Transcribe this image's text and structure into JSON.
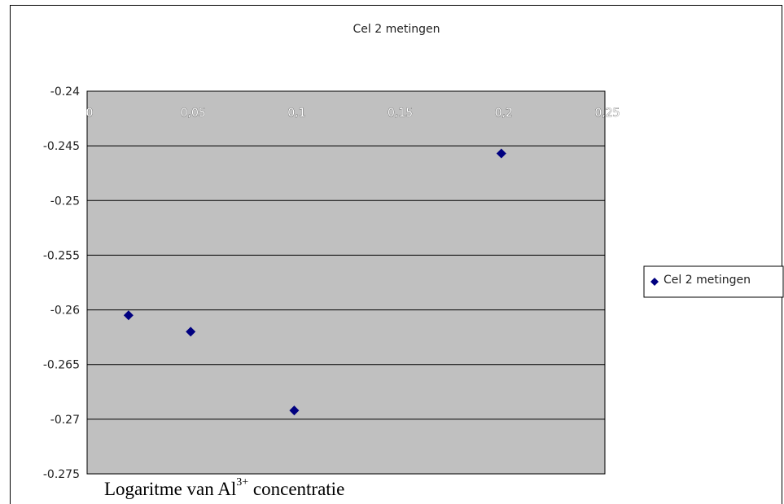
{
  "chart_data": {
    "type": "scatter",
    "title": "Cel 2 metingen",
    "series": [
      {
        "name": "Cel 2 metingen",
        "color": "#000080",
        "marker": "diamond",
        "points": [
          {
            "x": 0.02,
            "y": -0.2605
          },
          {
            "x": 0.05,
            "y": -0.262
          },
          {
            "x": 0.1,
            "y": -0.2692
          },
          {
            "x": 0.2,
            "y": -0.2457
          }
        ]
      }
    ],
    "xlim": [
      0,
      0.25
    ],
    "ylim": [
      -0.275,
      -0.24
    ],
    "x_ticks": [
      "0",
      "0,05",
      "0,1",
      "0,15",
      "0,2",
      "0,25"
    ],
    "x_tick_values": [
      0,
      0.05,
      0.1,
      0.15,
      0.2,
      0.25
    ],
    "y_ticks": [
      "-0.24",
      "-0.245",
      "-0.25",
      "-0.255",
      "-0.26",
      "-0.265",
      "-0.27",
      "-0.275"
    ],
    "y_tick_values": [
      -0.24,
      -0.245,
      -0.25,
      -0.255,
      -0.26,
      -0.265,
      -0.27,
      -0.275
    ],
    "xlabel": {
      "prefix": "Logaritme van Al",
      "superscript": "3+",
      "suffix": " concentratie"
    },
    "x_axis_position": "top",
    "plot_background": "#c0c0c0",
    "grid": "horizontal",
    "legend_position": "right"
  }
}
